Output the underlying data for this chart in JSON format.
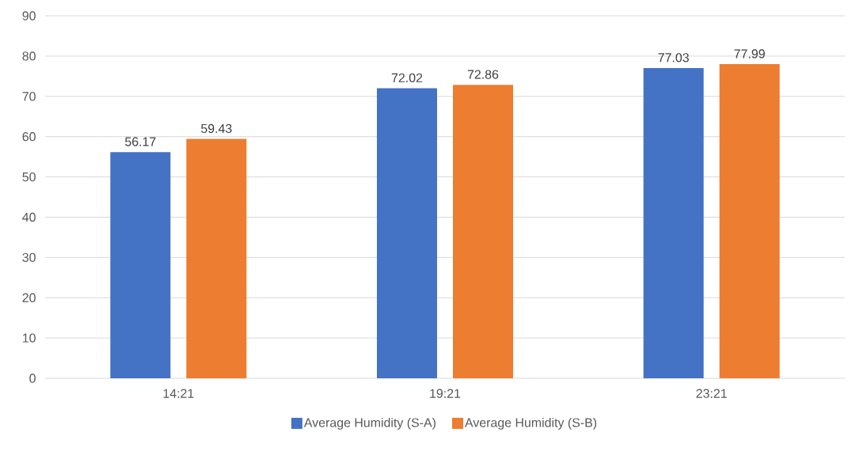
{
  "chart_data": {
    "type": "bar",
    "categories": [
      "14:21",
      "19:21",
      "23:21"
    ],
    "series": [
      {
        "name": "Average Humidity (S-A)",
        "color": "#4472c4",
        "values": [
          56.17,
          72.02,
          77.03
        ]
      },
      {
        "name": "Average Humidity (S-B)",
        "color": "#ed7d31",
        "values": [
          59.43,
          72.86,
          77.99
        ]
      }
    ],
    "ylim": [
      0,
      90
    ],
    "yticks": [
      0,
      10,
      20,
      30,
      40,
      50,
      60,
      70,
      80,
      90
    ],
    "grid": "y",
    "legend": "bottom",
    "data_labels": true
  }
}
